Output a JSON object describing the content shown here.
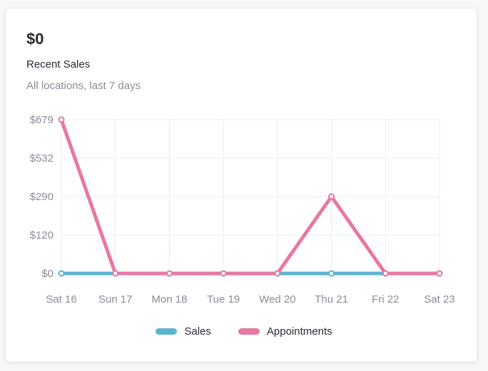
{
  "card": {
    "total": "$0",
    "title": "Recent Sales",
    "subtitle": "All locations, last 7 days"
  },
  "colors": {
    "sales": "#5ab4d2",
    "appointments": "#e877a4",
    "grid": "#ececef"
  },
  "chart_data": {
    "type": "line",
    "categories": [
      "Sat 16",
      "Sun 17",
      "Mon 18",
      "Tue 19",
      "Wed 20",
      "Thu 21",
      "Fri 22",
      "Sat 23"
    ],
    "y_ticks": [
      0,
      120,
      290,
      532,
      679
    ],
    "y_tick_labels": [
      "$0",
      "$120",
      "$290",
      "$532",
      "$679"
    ],
    "series": [
      {
        "name": "Sales",
        "values": [
          0,
          0,
          0,
          0,
          0,
          0,
          0,
          0
        ]
      },
      {
        "name": "Appointments",
        "values": [
          679,
          0,
          0,
          0,
          0,
          290,
          0,
          0
        ]
      }
    ],
    "legend": "bottom",
    "grid": true
  }
}
